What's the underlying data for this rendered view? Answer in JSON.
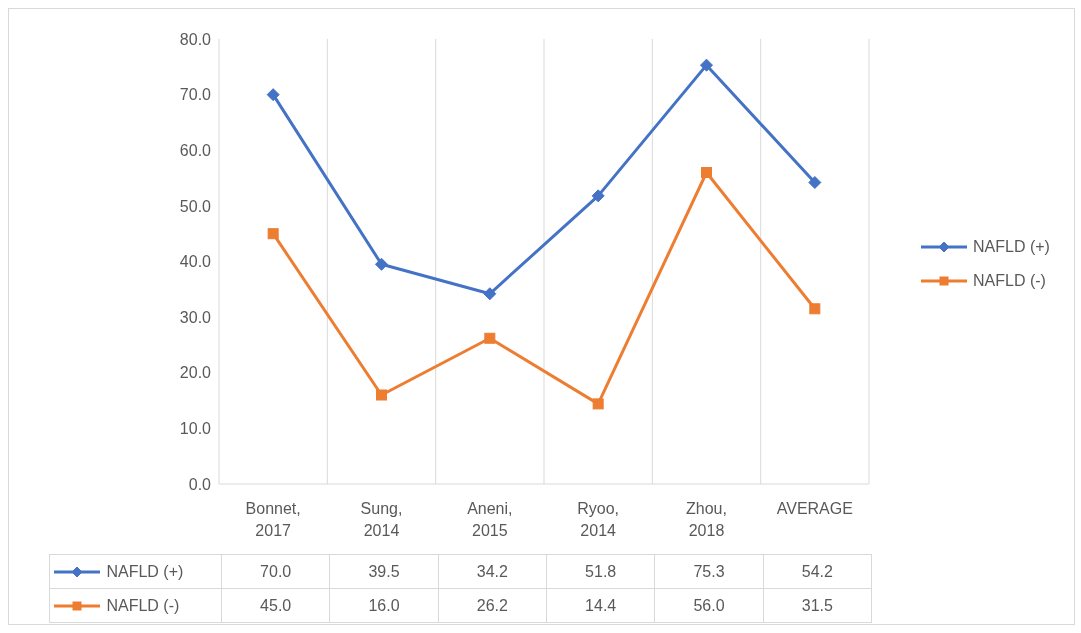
{
  "chart_data": {
    "type": "line",
    "categories": [
      "Bonnet, 2017",
      "Sung, 2014",
      "Aneni, 2015",
      "Ryoo, 2014",
      "Zhou, 2018",
      "AVERAGE"
    ],
    "series": [
      {
        "name": "NAFLD (+)",
        "color": "#4472c4",
        "marker": "diamond",
        "values": [
          70.0,
          39.5,
          34.2,
          51.8,
          75.3,
          54.2
        ],
        "value_labels": [
          "70.0",
          "39.5",
          "34.2",
          "51.8",
          "75.3",
          "54.2"
        ]
      },
      {
        "name": "NAFLD (-)",
        "color": "#ed7d31",
        "marker": "square",
        "values": [
          45.0,
          16.0,
          26.2,
          14.4,
          56.0,
          31.5
        ],
        "value_labels": [
          "45.0",
          "16.0",
          "26.2",
          "14.4",
          "56.0",
          "31.5"
        ]
      }
    ],
    "ylim": [
      0,
      80
    ],
    "yticks": [
      {
        "value": 0,
        "label": "0.0"
      },
      {
        "value": 10,
        "label": "10.0"
      },
      {
        "value": 20,
        "label": "20.0"
      },
      {
        "value": 30,
        "label": "30.0"
      },
      {
        "value": 40,
        "label": "40.0"
      },
      {
        "value": 50,
        "label": "50.0"
      },
      {
        "value": 60,
        "label": "60.0"
      },
      {
        "value": 70,
        "label": "70.0"
      },
      {
        "value": 80,
        "label": "80.0"
      }
    ],
    "grid": "x",
    "legend": "right",
    "line_style": "solid"
  }
}
